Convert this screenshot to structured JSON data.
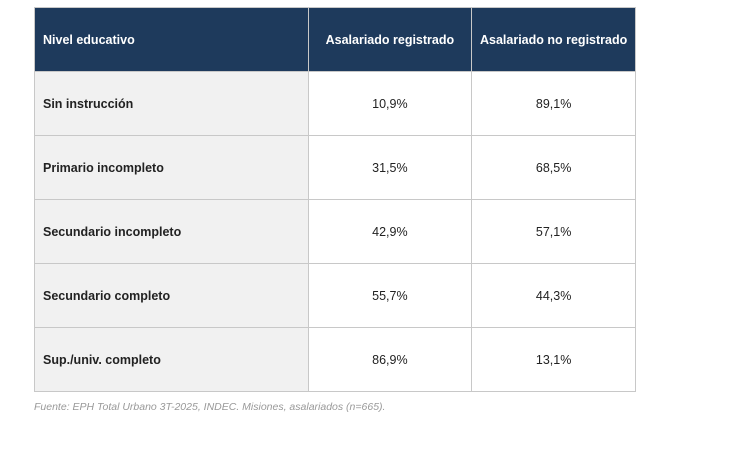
{
  "table": {
    "headers": [
      "Nivel educativo",
      "Asalariado registrado",
      "Asalariado no registrado"
    ],
    "rows": [
      {
        "level": "Sin instrucción",
        "registered": "10,9%",
        "unregistered": "89,1%"
      },
      {
        "level": "Primario incompleto",
        "registered": "31,5%",
        "unregistered": "68,5%"
      },
      {
        "level": "Secundario incompleto",
        "registered": "42,9%",
        "unregistered": "57,1%"
      },
      {
        "level": "Secundario completo",
        "registered": "55,7%",
        "unregistered": "44,3%"
      },
      {
        "level": "Sup./univ. completo",
        "registered": "86,9%",
        "unregistered": "13,1%"
      }
    ]
  },
  "caption": "Fuente: EPH Total Urbano 3T-2025, INDEC. Misiones, asalariados (n=665).",
  "colors": {
    "header_bg": "#1e3a5c",
    "first_col_bg": "#f1f1f1"
  }
}
